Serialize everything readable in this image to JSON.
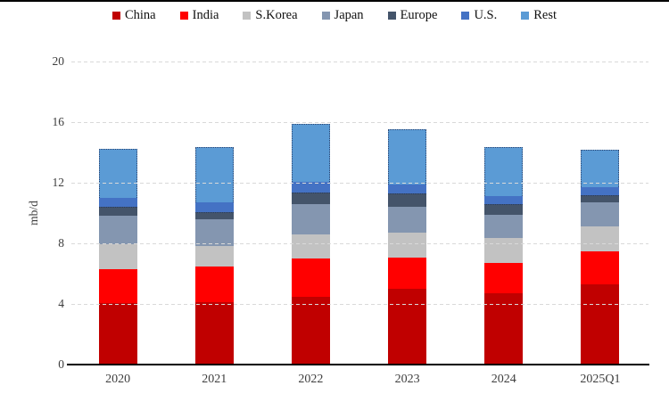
{
  "chart_data": {
    "type": "bar",
    "stacked": true,
    "title": "",
    "xlabel": "",
    "ylabel": "mb/d",
    "ylim": [
      0,
      20
    ],
    "y_ticks": [
      0,
      4,
      8,
      12,
      16,
      20
    ],
    "grid": "horizontal-dashed",
    "gridline_color": "#d9d9d9",
    "axis_line_color": "#000000",
    "legend_position": "top-center",
    "categories": [
      "2020",
      "2021",
      "2022",
      "2023",
      "2024",
      "2025Q1"
    ],
    "series": [
      {
        "name": "China",
        "color": "#C00000",
        "values": [
          4.05,
          4.1,
          4.45,
          5.0,
          4.7,
          5.3
        ]
      },
      {
        "name": "India",
        "color": "#FF0000",
        "values": [
          2.25,
          2.35,
          2.55,
          2.05,
          2.0,
          2.15
        ]
      },
      {
        "name": "S.Korea",
        "color": "#C2C2C2",
        "pattern": "dots",
        "values": [
          1.65,
          1.4,
          1.6,
          1.65,
          1.65,
          1.65
        ]
      },
      {
        "name": "Japan",
        "color": "#8496B0",
        "values": [
          1.9,
          1.75,
          2.0,
          1.7,
          1.55,
          1.6
        ]
      },
      {
        "name": "Europe",
        "color": "#44546A",
        "edge": "top",
        "values": [
          0.55,
          0.45,
          0.75,
          0.9,
          0.7,
          0.5
        ]
      },
      {
        "name": "U.S.",
        "color": "#4472C4",
        "values": [
          0.6,
          0.65,
          0.7,
          0.6,
          0.5,
          0.5
        ]
      },
      {
        "name": "Rest",
        "color": "#5B9BD5",
        "edge": "full",
        "values": [
          3.25,
          3.65,
          3.85,
          3.65,
          3.25,
          2.5
        ]
      }
    ],
    "totals": [
      14.25,
      14.35,
      15.9,
      15.55,
      14.35,
      14.2
    ]
  }
}
